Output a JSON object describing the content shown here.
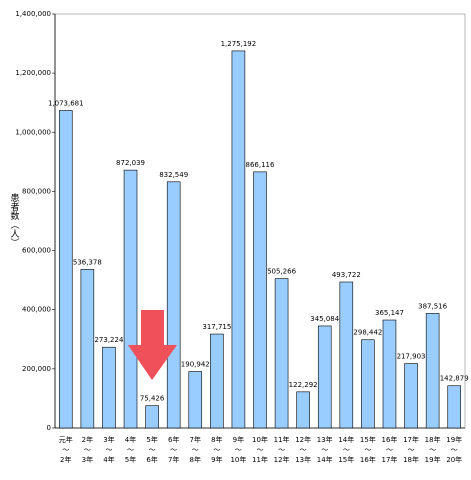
{
  "chart_data": {
    "type": "bar",
    "y_label": "患者数（人）",
    "categories": [
      [
        "元年",
        "～",
        "2年"
      ],
      [
        "2年",
        "～",
        "3年"
      ],
      [
        "3年",
        "～",
        "4年"
      ],
      [
        "4年",
        "～",
        "5年"
      ],
      [
        "5年",
        "～",
        "6年"
      ],
      [
        "6年",
        "～",
        "7年"
      ],
      [
        "7年",
        "～",
        "8年"
      ],
      [
        "8年",
        "～",
        "9年"
      ],
      [
        "9年",
        "～",
        "10年"
      ],
      [
        "10年",
        "～",
        "11年"
      ],
      [
        "11年",
        "～",
        "12年"
      ],
      [
        "12年",
        "～",
        "13年"
      ],
      [
        "13年",
        "～",
        "14年"
      ],
      [
        "14年",
        "～",
        "15年"
      ],
      [
        "15年",
        "～",
        "16年"
      ],
      [
        "16年",
        "～",
        "17年"
      ],
      [
        "17年",
        "～",
        "18年"
      ],
      [
        "18年",
        "～",
        "19年"
      ],
      [
        "19年",
        "～",
        "20年"
      ]
    ],
    "values": [
      1073681,
      536378,
      273224,
      872039,
      75426,
      832549,
      190942,
      317715,
      1275192,
      866116,
      505266,
      122292,
      345084,
      493722,
      298442,
      365147,
      217903,
      387516,
      142879
    ],
    "value_labels": [
      "1,073,681",
      "536,378",
      "273,224",
      "872,039",
      "75,426",
      "832,549",
      "190,942",
      "317,715",
      "1,275,192",
      "866,116",
      "505,266",
      "122,292",
      "345,084",
      "493,722",
      "298,442",
      "365,147",
      "217,903",
      "387,516",
      "142,879"
    ],
    "color": "#99ccff",
    "ylim": [
      0,
      1400000
    ],
    "yticks": [
      0,
      {
        "value": 200000,
        "label": "200,000"
      },
      {
        "value": 400000,
        "label": "400,000"
      },
      {
        "value": 600000,
        "label": "600,000"
      },
      {
        "value": 800000,
        "label": "800,000"
      },
      {
        "value": 1000000,
        "label": "1,000,000"
      },
      {
        "value": 1200000,
        "label": "1,200,000"
      },
      {
        "value": 1400000,
        "label": "1,400,000"
      }
    ],
    "grid": false
  }
}
